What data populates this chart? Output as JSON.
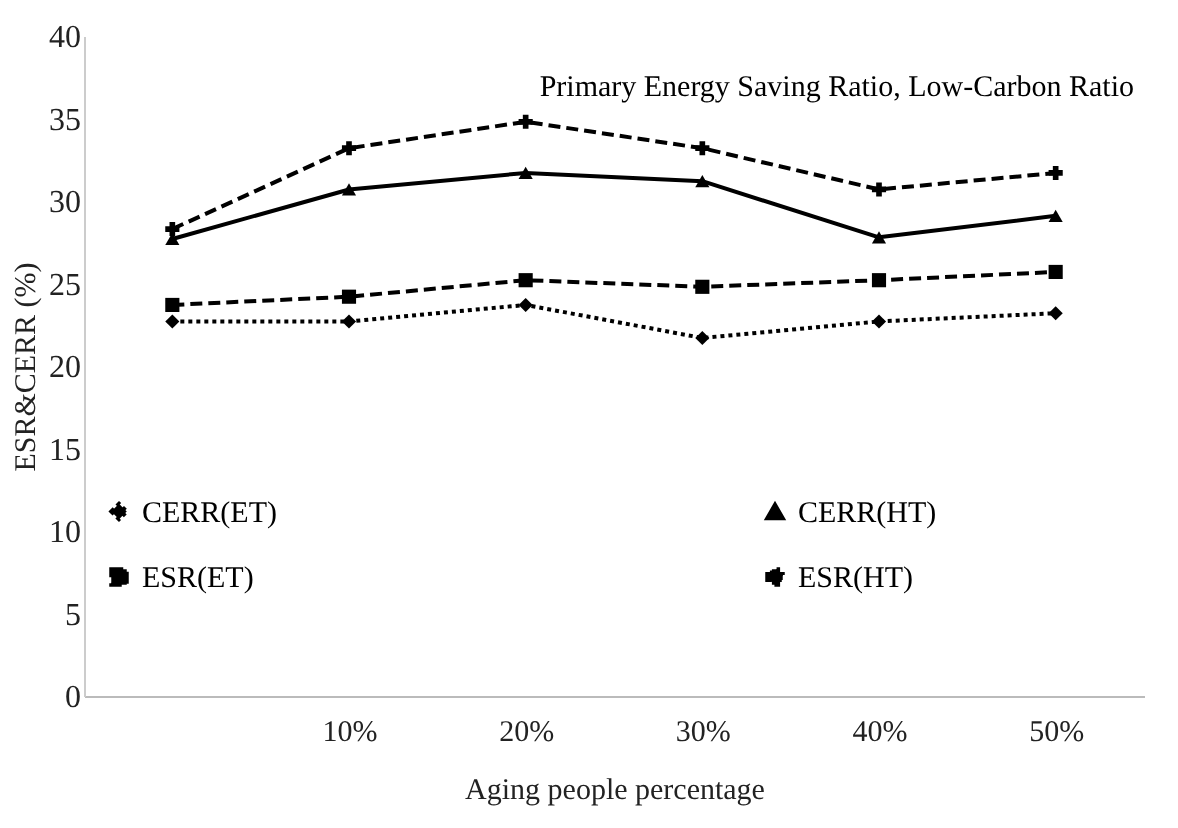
{
  "chart_data": {
    "type": "line",
    "xlabel": "Aging people percentage",
    "ylabel": "ESR&CERR (%)",
    "annotations": [
      "Primary Energy Saving Ratio, Low-Carbon Ratio"
    ],
    "categories": [
      null,
      "10%",
      "20%",
      "30%",
      "40%",
      "50%"
    ],
    "series": [
      {
        "name": "CERR(ET)",
        "color": "#000000",
        "line_style": "dotted",
        "marker": "diamond",
        "values": [
          22.7,
          22.7,
          23.7,
          21.7,
          22.7,
          23.2
        ]
      },
      {
        "name": "ESR(ET)",
        "color": "#000000",
        "line_style": "dashed",
        "marker": "square",
        "values": [
          23.7,
          24.2,
          25.2,
          24.8,
          25.2,
          25.7
        ]
      },
      {
        "name": "CERR(HT)",
        "color": "#000000",
        "line_style": "solid",
        "marker": "triangle",
        "values": [
          27.7,
          30.7,
          31.7,
          31.2,
          27.8,
          29.1
        ]
      },
      {
        "name": "ESR(HT)",
        "color": "#000000",
        "line_style": "dashed",
        "marker": "cross",
        "values": [
          28.3,
          33.2,
          34.8,
          33.2,
          30.7,
          31.7
        ]
      }
    ],
    "ylim": [
      0,
      40
    ],
    "yticks": [
      0,
      5,
      10,
      15,
      20,
      25,
      30,
      35,
      40
    ],
    "grid": false,
    "legend": "bottom"
  }
}
